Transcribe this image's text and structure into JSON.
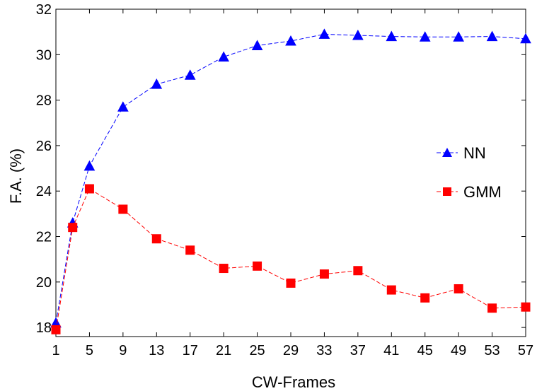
{
  "chart_data": {
    "type": "line",
    "title": "",
    "xlabel": "CW-Frames",
    "ylabel": "F.A. (%)",
    "x": [
      1,
      3,
      5,
      9,
      13,
      17,
      21,
      25,
      29,
      33,
      37,
      41,
      45,
      49,
      53,
      57
    ],
    "xticks": [
      1,
      5,
      9,
      13,
      17,
      21,
      25,
      29,
      33,
      37,
      41,
      45,
      49,
      53,
      57
    ],
    "yticks": [
      18,
      20,
      22,
      24,
      26,
      28,
      30,
      32
    ],
    "xlim": [
      1,
      57
    ],
    "ylim": [
      17.6,
      32
    ],
    "grid": false,
    "legend_position": "right",
    "series": [
      {
        "name": "NN",
        "color": "#0000ff",
        "marker": "triangle",
        "values": [
          18.2,
          22.6,
          25.1,
          27.7,
          28.7,
          29.1,
          29.9,
          30.4,
          30.6,
          30.9,
          30.85,
          30.8,
          30.78,
          30.78,
          30.8,
          30.7
        ]
      },
      {
        "name": "GMM",
        "color": "#ff0000",
        "marker": "square",
        "values": [
          17.9,
          22.4,
          24.1,
          23.2,
          21.9,
          21.4,
          20.6,
          20.7,
          19.95,
          20.35,
          20.5,
          19.65,
          19.3,
          19.7,
          18.85,
          18.9
        ]
      }
    ]
  }
}
